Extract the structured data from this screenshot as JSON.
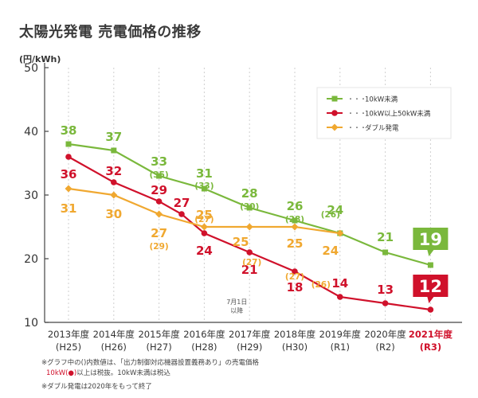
{
  "title": "太陽光発電 売電価格の推移",
  "unit_label": "(円/kWh)",
  "chart_data": {
    "type": "line",
    "title": "太陽光発電 売電価格の推移",
    "ylabel": "(円/kWh)",
    "ylim": [
      10,
      50
    ],
    "yticks": [
      "10",
      "20",
      "30",
      "40",
      "50"
    ],
    "grid": "vertical dashed",
    "legend_position": "top-right",
    "categories": [
      {
        "year": "2013年度",
        "era": "(H25)"
      },
      {
        "year": "2014年度",
        "era": "(H26)"
      },
      {
        "year": "2015年度",
        "era": "(H27)"
      },
      {
        "year": "2016年度",
        "era": "(H28)"
      },
      {
        "year": "2017年度",
        "era": "(H29)"
      },
      {
        "year": "2018年度",
        "era": "(H30)"
      },
      {
        "year": "2019年度",
        "era": "(R1)"
      },
      {
        "year": "2020年度",
        "era": "(R2)"
      },
      {
        "year": "2021年度",
        "era": "(R3)",
        "highlight": true
      }
    ],
    "series": [
      {
        "name": "10kW未満",
        "color": "#7ab83c",
        "marker": "square",
        "x": [
          0,
          1,
          2,
          3,
          4,
          5,
          6,
          7,
          8
        ],
        "values": [
          38,
          37,
          33,
          31,
          28,
          26,
          24,
          21,
          19
        ],
        "labels": [
          "38",
          "37",
          "33",
          "31",
          "28",
          "26",
          "24",
          "21",
          "19"
        ],
        "sublabels": [
          "",
          "",
          "(35)",
          "(33)",
          "(30)",
          "(28)",
          "(26)",
          "",
          ""
        ]
      },
      {
        "name": "10kW以上50kW未満",
        "color": "#d0112b",
        "marker": "circle",
        "x": [
          0,
          1,
          2,
          2.5,
          3,
          4,
          5,
          6,
          7,
          8
        ],
        "values": [
          36,
          32,
          29,
          27,
          24,
          21,
          18,
          14,
          13,
          12
        ],
        "labels": [
          "36",
          "32",
          "29",
          "27",
          "24",
          "21",
          "18",
          "14",
          "13",
          "12"
        ]
      },
      {
        "name": "ダブル発電",
        "color": "#f0a830",
        "marker": "diamond",
        "x": [
          0,
          1,
          2,
          3,
          4,
          5,
          6
        ],
        "values": [
          31,
          30,
          27,
          25,
          25,
          25,
          24
        ],
        "labels": [
          "31",
          "30",
          "27",
          "25",
          "25",
          "25",
          "24"
        ],
        "sublabels": [
          "",
          "",
          "(29)",
          "(27)",
          "(27)",
          "(27)",
          "(26)"
        ]
      }
    ],
    "annotations": [
      "7月1日",
      "以降"
    ],
    "legend_dots": "・・・"
  },
  "notes": {
    "line1": "※グラフ中の()内数値は、「出力制御対応機器設置義務あり」の売電価格",
    "line2_red": "10kW(●)",
    "line2_rest": "以上は税抜。10kW未満は税込",
    "line3": "※ダブル発電は2020年をもって終了"
  }
}
